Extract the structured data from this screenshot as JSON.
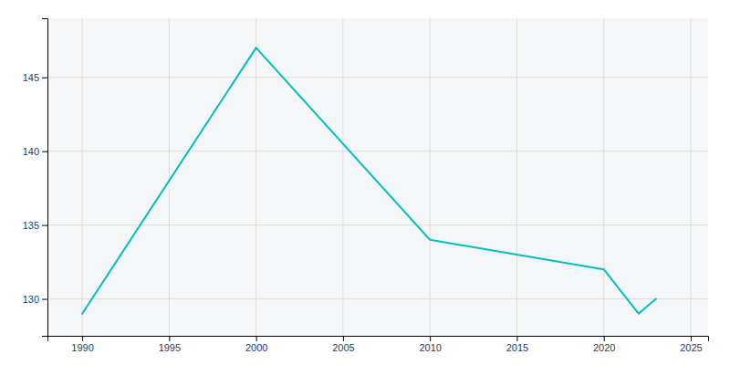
{
  "chart_data": {
    "type": "line",
    "x": [
      1990,
      2000,
      2010,
      2015,
      2020,
      2021,
      2022,
      2023
    ],
    "values": [
      129,
      147,
      134,
      133,
      132,
      130.5,
      129,
      130
    ],
    "color": "#00BEBE",
    "xlim": [
      1988,
      2026
    ],
    "ylim": [
      127.5,
      149
    ],
    "xticks": [
      1990,
      1995,
      2000,
      2005,
      2010,
      2015,
      2020,
      2025
    ],
    "yticks": [
      130,
      135,
      140,
      145
    ],
    "grid": true
  }
}
